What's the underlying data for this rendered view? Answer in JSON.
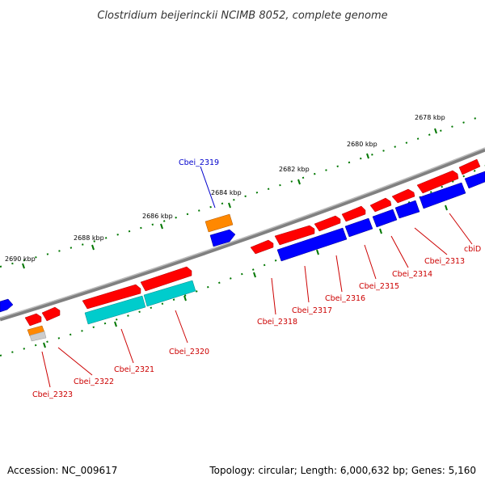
{
  "title": "Clostridium beijerinckii NCIMB 8052, complete genome",
  "footer": {
    "accession": "Accession: NC_009617",
    "summary": "Topology: circular; Length: 6,000,632 bp; Genes: 5,160"
  },
  "ruler": {
    "tick_labels": [
      "2678 kbp",
      "2680 kbp",
      "2682 kbp",
      "2684 kbp",
      "2686 kbp",
      "2688 kbp",
      "2690 kbp"
    ]
  },
  "genes": [
    {
      "label": "Cbei_2319",
      "color": "#0000cc"
    },
    {
      "label": "cbiD",
      "color": "#cc0000"
    },
    {
      "label": "Cbei_2313",
      "color": "#cc0000"
    },
    {
      "label": "Cbei_2314",
      "color": "#cc0000"
    },
    {
      "label": "Cbei_2315",
      "color": "#cc0000"
    },
    {
      "label": "Cbei_2316",
      "color": "#cc0000"
    },
    {
      "label": "Cbei_2317",
      "color": "#cc0000"
    },
    {
      "label": "Cbei_2318",
      "color": "#cc0000"
    },
    {
      "label": "Cbei_2320",
      "color": "#cc0000"
    },
    {
      "label": "Cbei_2321",
      "color": "#cc0000"
    },
    {
      "label": "Cbei_2322",
      "color": "#cc0000"
    },
    {
      "label": "Cbei_2323",
      "color": "#cc0000"
    }
  ],
  "colors": {
    "forward_strand": "#ff0000",
    "reverse_strand": "#0000ff",
    "rna_feature": "#00cccc",
    "other_feature": "#ff8800",
    "backbone": "#808080",
    "tick": "#007700"
  }
}
